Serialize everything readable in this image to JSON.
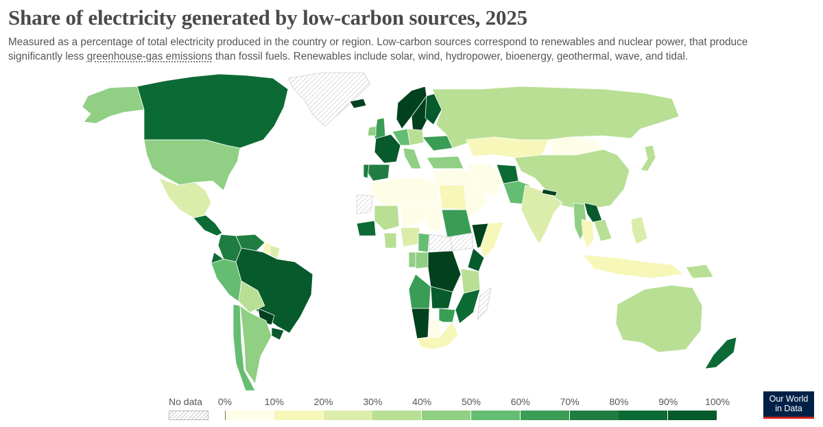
{
  "title": "Share of electricity generated by low-carbon sources, 2025",
  "subtitle": {
    "line1": "Measured as a percentage of total electricity produced in the country or region. Low-carbon sources correspond to renewables and nuclear power, that produce",
    "line2_before": "significantly less ",
    "line2_link": "greenhouse-gas emissions",
    "line2_after": " than fossil fuels. Renewables include solar, wind, hydropower, bioenergy, geothermal, wave, and tidal."
  },
  "legend": {
    "no_data_label": "No data",
    "ticks": [
      "0%",
      "10%",
      "20%",
      "30%",
      "40%",
      "50%",
      "60%",
      "70%",
      "80%",
      "90%",
      "100%"
    ],
    "colors": [
      "#fefde8",
      "#f6f7b8",
      "#dcedab",
      "#b8df94",
      "#90cf84",
      "#65bd72",
      "#3a9d55",
      "#1f7d41",
      "#0c6a35",
      "#075a2b",
      "#02411e"
    ]
  },
  "logo": {
    "line1": "Our World",
    "line2": "in Data"
  },
  "colors": {
    "title": "#4a4a4a",
    "logo_bg": "#002147",
    "logo_accent": "#ce261e",
    "no_data": "#d9d9d9"
  },
  "chart_data": {
    "type": "choropleth",
    "value_unit": "%",
    "bins": [
      0,
      10,
      20,
      30,
      40,
      50,
      60,
      70,
      80,
      90,
      100
    ],
    "regions": [
      {
        "name": "Canada",
        "bin": 8
      },
      {
        "name": "United States",
        "bin": 4
      },
      {
        "name": "Alaska",
        "bin": 4
      },
      {
        "name": "Greenland",
        "bin": -1
      },
      {
        "name": "Mexico",
        "bin": 2
      },
      {
        "name": "Central America",
        "bin": 8
      },
      {
        "name": "Colombia",
        "bin": 7
      },
      {
        "name": "Venezuela",
        "bin": 7
      },
      {
        "name": "Guyana",
        "bin": 1
      },
      {
        "name": "Suriname",
        "bin": 2
      },
      {
        "name": "Ecuador",
        "bin": 8
      },
      {
        "name": "Peru",
        "bin": 5
      },
      {
        "name": "Brazil",
        "bin": 9
      },
      {
        "name": "Bolivia",
        "bin": 3
      },
      {
        "name": "Paraguay",
        "bin": 10
      },
      {
        "name": "Uruguay",
        "bin": 9
      },
      {
        "name": "Chile",
        "bin": 5
      },
      {
        "name": "Argentina",
        "bin": 4
      },
      {
        "name": "Iceland",
        "bin": 10
      },
      {
        "name": "Norway",
        "bin": 10
      },
      {
        "name": "Sweden",
        "bin": 10
      },
      {
        "name": "Finland",
        "bin": 9
      },
      {
        "name": "United Kingdom",
        "bin": 6
      },
      {
        "name": "Ireland",
        "bin": 4
      },
      {
        "name": "France",
        "bin": 9
      },
      {
        "name": "Spain",
        "bin": 7
      },
      {
        "name": "Portugal",
        "bin": 7
      },
      {
        "name": "Germany",
        "bin": 5
      },
      {
        "name": "Poland",
        "bin": 3
      },
      {
        "name": "Italy",
        "bin": 4
      },
      {
        "name": "Ukraine",
        "bin": 6
      },
      {
        "name": "Russia",
        "bin": 3
      },
      {
        "name": "Kazakhstan",
        "bin": 1
      },
      {
        "name": "Mongolia",
        "bin": 0
      },
      {
        "name": "China",
        "bin": 3
      },
      {
        "name": "Japan",
        "bin": 3
      },
      {
        "name": "Turkey",
        "bin": 4
      },
      {
        "name": "Middle East",
        "bin": 0
      },
      {
        "name": "Iran",
        "bin": 0
      },
      {
        "name": "Afghanistan",
        "bin": 8
      },
      {
        "name": "Pakistan",
        "bin": 5
      },
      {
        "name": "India",
        "bin": 2
      },
      {
        "name": "Nepal",
        "bin": 10
      },
      {
        "name": "Myanmar",
        "bin": 4
      },
      {
        "name": "Laos",
        "bin": 9
      },
      {
        "name": "Vietnam",
        "bin": 3
      },
      {
        "name": "Thailand",
        "bin": 1
      },
      {
        "name": "Philippines",
        "bin": 2
      },
      {
        "name": "Indonesia",
        "bin": 1
      },
      {
        "name": "Papua New Guinea",
        "bin": 3
      },
      {
        "name": "Australia",
        "bin": 3
      },
      {
        "name": "New Zealand",
        "bin": 8
      },
      {
        "name": "North Africa",
        "bin": 0
      },
      {
        "name": "Western Sahara",
        "bin": -1
      },
      {
        "name": "Mali",
        "bin": 3
      },
      {
        "name": "Niger",
        "bin": 0
      },
      {
        "name": "Chad",
        "bin": 0
      },
      {
        "name": "Egypt",
        "bin": 1
      },
      {
        "name": "Sudan",
        "bin": 6
      },
      {
        "name": "South Sudan",
        "bin": -1
      },
      {
        "name": "Ethiopia",
        "bin": 10
      },
      {
        "name": "Somalia",
        "bin": 1
      },
      {
        "name": "Kenya",
        "bin": 9
      },
      {
        "name": "Nigeria",
        "bin": 2
      },
      {
        "name": "Ghana",
        "bin": 3
      },
      {
        "name": "Guinea",
        "bin": 8
      },
      {
        "name": "Cameroon",
        "bin": 5
      },
      {
        "name": "Central African Republic",
        "bin": -1
      },
      {
        "name": "DR Congo",
        "bin": 10
      },
      {
        "name": "Congo",
        "bin": 4
      },
      {
        "name": "Gabon",
        "bin": 4
      },
      {
        "name": "Tanzania",
        "bin": 3
      },
      {
        "name": "Angola",
        "bin": 6
      },
      {
        "name": "Zambia",
        "bin": 9
      },
      {
        "name": "Mozambique",
        "bin": 8
      },
      {
        "name": "Zimbabwe",
        "bin": 6
      },
      {
        "name": "Namibia",
        "bin": 10
      },
      {
        "name": "Botswana",
        "bin": 0
      },
      {
        "name": "South Africa",
        "bin": 1
      },
      {
        "name": "Madagascar",
        "bin": -1
      }
    ]
  }
}
